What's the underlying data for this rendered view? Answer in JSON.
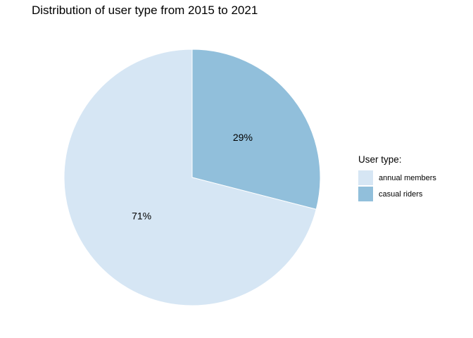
{
  "chart_data": {
    "type": "pie",
    "title": "Distribution of user type from 2015 to 2021",
    "legend_title": "User type:",
    "legend_position": "right",
    "slices": [
      {
        "label": "annual members",
        "value": 71,
        "display": "71%",
        "color": "#d6e6f4"
      },
      {
        "label": "casual riders",
        "value": 29,
        "display": "29%",
        "color": "#91bfdb"
      }
    ]
  }
}
